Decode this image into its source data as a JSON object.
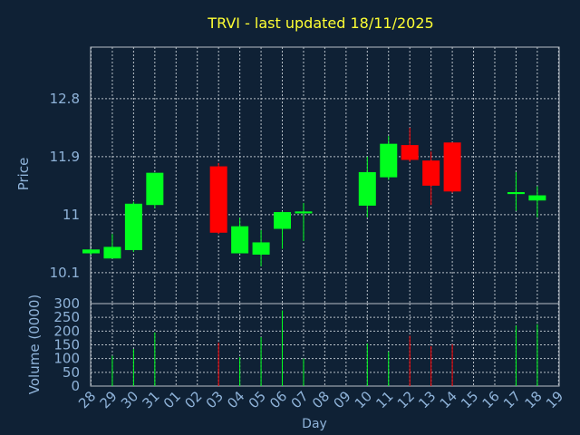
{
  "chart_data": {
    "type": "candlestick",
    "title": "TRVI - last updated 18/11/2025",
    "xlabel": "Day",
    "grid": true,
    "colors": {
      "background": "#0f2135",
      "frame": "#b8c0c8",
      "grid": "#b8c0c8",
      "title": "#ffff33",
      "axis_text": "#8fb3d9",
      "up": "#00ff1e",
      "down": "#ff0000"
    },
    "x_ticks": [
      "28",
      "29",
      "30",
      "31",
      "01",
      "02",
      "03",
      "04",
      "05",
      "06",
      "07",
      "08",
      "09",
      "10",
      "11",
      "12",
      "13",
      "14",
      "15",
      "16",
      "17",
      "18",
      "19"
    ],
    "price_panel": {
      "ylabel": "Price",
      "ylim": [
        9.62,
        13.6
      ],
      "y_ticks": [
        {
          "value": 10.1,
          "label": "10.1"
        },
        {
          "value": 11.0,
          "label": "11"
        },
        {
          "value": 11.9,
          "label": "11.9"
        },
        {
          "value": 12.8,
          "label": "12.8"
        }
      ]
    },
    "volume_panel": {
      "ylabel": "Volume (0000)",
      "ylim": [
        0,
        300
      ],
      "y_ticks": [
        {
          "value": 0,
          "label": "0"
        },
        {
          "value": 50,
          "label": "50"
        },
        {
          "value": 100,
          "label": "100"
        },
        {
          "value": 150,
          "label": "150"
        },
        {
          "value": 200,
          "label": "200"
        },
        {
          "value": 250,
          "label": "250"
        },
        {
          "value": 300,
          "label": "300"
        }
      ]
    },
    "candles": [
      {
        "day": "28",
        "open": 10.4,
        "high": 10.46,
        "low": 10.38,
        "close": 10.46,
        "volume": 0
      },
      {
        "day": "29",
        "open": 10.32,
        "high": 10.7,
        "low": 10.32,
        "close": 10.5,
        "volume": 110
      },
      {
        "day": "30",
        "open": 10.45,
        "high": 11.2,
        "low": 10.42,
        "close": 11.17,
        "volume": 135
      },
      {
        "day": "31",
        "open": 11.15,
        "high": 11.65,
        "low": 11.1,
        "close": 11.65,
        "volume": 195
      },
      {
        "day": "03",
        "open": 11.75,
        "high": 11.8,
        "low": 10.7,
        "close": 10.72,
        "volume": 158
      },
      {
        "day": "04",
        "open": 10.4,
        "high": 10.95,
        "low": 10.4,
        "close": 10.82,
        "volume": 105
      },
      {
        "day": "05",
        "open": 10.38,
        "high": 10.76,
        "low": 10.2,
        "close": 10.57,
        "volume": 178
      },
      {
        "day": "06",
        "open": 10.78,
        "high": 11.05,
        "low": 10.47,
        "close": 11.04,
        "volume": 275
      },
      {
        "day": "07",
        "open": 11.02,
        "high": 11.18,
        "low": 10.59,
        "close": 11.05,
        "volume": 100
      },
      {
        "day": "10",
        "open": 11.14,
        "high": 11.9,
        "low": 10.96,
        "close": 11.66,
        "volume": 155
      },
      {
        "day": "11",
        "open": 11.58,
        "high": 12.22,
        "low": 11.54,
        "close": 12.1,
        "volume": 125
      },
      {
        "day": "12",
        "open": 12.08,
        "high": 12.35,
        "low": 11.82,
        "close": 11.85,
        "volume": 183
      },
      {
        "day": "13",
        "open": 11.84,
        "high": 11.98,
        "low": 11.15,
        "close": 11.45,
        "volume": 145
      },
      {
        "day": "14",
        "open": 12.12,
        "high": 12.12,
        "low": 11.34,
        "close": 11.36,
        "volume": 152
      },
      {
        "day": "17",
        "open": 11.32,
        "high": 11.66,
        "low": 11.06,
        "close": 11.35,
        "volume": 220
      },
      {
        "day": "18",
        "open": 11.22,
        "high": 11.44,
        "low": 10.96,
        "close": 11.3,
        "volume": 225
      }
    ]
  }
}
